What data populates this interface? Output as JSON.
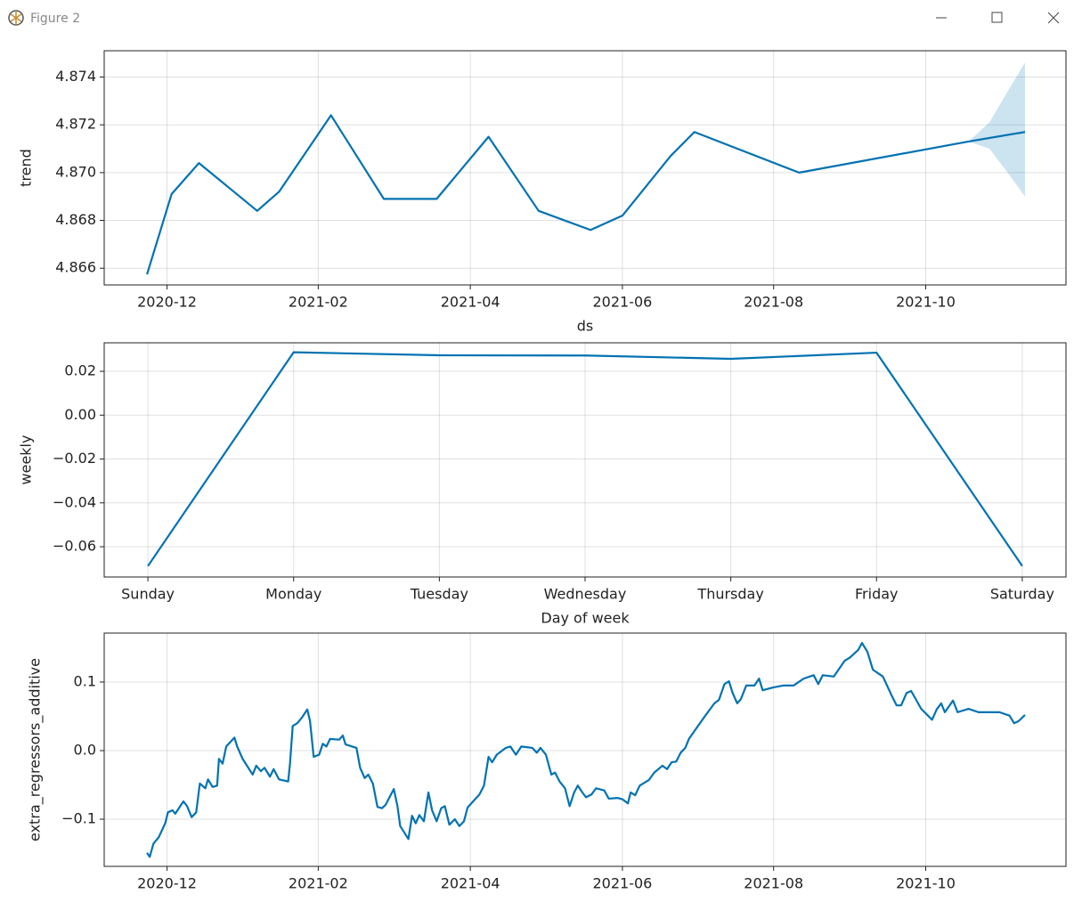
{
  "window": {
    "title": "Figure 2"
  },
  "chart_data": [
    {
      "type": "line",
      "ylabel": "trend",
      "xlabel": "ds",
      "color": "#0072B2",
      "grid": true,
      "xlim": [
        2020.848,
        2021.904
      ],
      "ylim": [
        4.8653,
        4.8751
      ],
      "xticks": [
        {
          "value": 2020.917,
          "label": "2020-12"
        },
        {
          "value": 2021.083,
          "label": "2021-02"
        },
        {
          "value": 2021.25,
          "label": "2021-04"
        },
        {
          "value": 2021.417,
          "label": "2021-06"
        },
        {
          "value": 2021.583,
          "label": "2021-08"
        },
        {
          "value": 2021.75,
          "label": "2021-10"
        }
      ],
      "yticks": [
        4.866,
        4.868,
        {
          "value": 4.87,
          "label": "4.870"
        },
        4.872,
        4.874
      ],
      "x": [
        2020.895,
        2020.922,
        2020.952,
        2021.016,
        2021.04,
        2021.097,
        2021.155,
        2021.213,
        2021.27,
        2021.325,
        2021.382,
        2021.417,
        2021.47,
        2021.496,
        2021.611,
        2021.797,
        2021.859
      ],
      "values": [
        4.86574,
        4.8691,
        4.8704,
        4.8684,
        4.8692,
        4.8724,
        4.8689,
        4.8689,
        4.8715,
        4.8684,
        4.8676,
        4.8682,
        4.8707,
        4.8717,
        4.87,
        4.8713,
        4.8717
      ],
      "band": {
        "x": [
          2021.797,
          2021.82,
          2021.84,
          2021.859
        ],
        "upper": [
          4.8713,
          4.8721,
          4.8734,
          4.8746
        ],
        "lower": [
          4.8713,
          4.871,
          4.87,
          4.869
        ]
      }
    },
    {
      "type": "line",
      "ylabel": "weekly",
      "xlabel": "Day of week",
      "color": "#0072B2",
      "grid": true,
      "categories": [
        "Sunday",
        "Monday",
        "Tuesday",
        "Wednesday",
        "Thursday",
        "Friday",
        "Saturday"
      ],
      "values": [
        -0.0688,
        0.0287,
        0.0273,
        0.0272,
        0.0257,
        0.0285,
        -0.0688
      ],
      "ylim": [
        -0.0738,
        0.033
      ],
      "yticks": [
        0.02,
        {
          "value": 0,
          "label": "0.00"
        },
        {
          "value": -0.02,
          "label": "−0.02"
        },
        {
          "value": -0.04,
          "label": "−0.04"
        },
        {
          "value": -0.06,
          "label": "−0.06"
        }
      ]
    },
    {
      "type": "line",
      "ylabel": "extra_regressors_additive",
      "color": "#0072B2",
      "grid": true,
      "xlim": [
        2020.848,
        2021.904
      ],
      "ylim": [
        -0.1688,
        0.1714
      ],
      "xticks": [
        {
          "value": 2020.917,
          "label": "2020-12"
        },
        {
          "value": 2021.083,
          "label": "2021-02"
        },
        {
          "value": 2021.25,
          "label": "2021-04"
        },
        {
          "value": 2021.417,
          "label": "2021-06"
        },
        {
          "value": 2021.583,
          "label": "2021-08"
        },
        {
          "value": 2021.75,
          "label": "2021-10"
        }
      ],
      "yticks": [
        0.1,
        {
          "value": 0,
          "label": "0.0"
        },
        {
          "value": -0.1,
          "label": "−0.1"
        }
      ],
      "x": [
        2020.895,
        2020.898,
        2020.902,
        2020.908,
        2020.915,
        2020.918,
        2020.923,
        2020.926,
        2020.935,
        2020.939,
        2020.944,
        2020.949,
        2020.953,
        2020.959,
        2020.962,
        2020.967,
        2020.972,
        2020.974,
        2020.978,
        2020.982,
        2020.991,
        2020.994,
        2021.0,
        2021.011,
        2021.015,
        2021.02,
        2021.024,
        2021.03,
        2021.034,
        2021.04,
        2021.05,
        2021.052,
        2021.055,
        2021.06,
        2021.065,
        2021.071,
        2021.074,
        2021.078,
        2021.084,
        2021.088,
        2021.092,
        2021.096,
        2021.106,
        2021.11,
        2021.113,
        2021.125,
        2021.129,
        2021.134,
        2021.138,
        2021.143,
        2021.148,
        2021.153,
        2021.157,
        2021.166,
        2021.17,
        2021.173,
        2021.182,
        2021.186,
        2021.19,
        2021.194,
        2021.199,
        2021.204,
        2021.208,
        2021.213,
        2021.218,
        2021.222,
        2021.227,
        2021.233,
        2021.238,
        2021.243,
        2021.247,
        2021.26,
        2021.265,
        2021.27,
        2021.274,
        2021.279,
        2021.289,
        2021.294,
        2021.3,
        2021.306,
        2021.318,
        2021.323,
        2021.327,
        2021.333,
        2021.339,
        2021.343,
        2021.348,
        2021.354,
        2021.359,
        2021.364,
        2021.368,
        2021.373,
        2021.377,
        2021.383,
        2021.388,
        2021.397,
        2021.402,
        2021.412,
        2021.417,
        2021.423,
        2021.426,
        2021.431,
        2021.436,
        2021.446,
        2021.452,
        2021.461,
        2021.466,
        2021.471,
        2021.476,
        2021.481,
        2021.486,
        2021.49,
        2021.5,
        2021.508,
        2021.518,
        2021.523,
        2021.529,
        2021.534,
        2021.538,
        2021.543,
        2021.547,
        2021.553,
        2021.562,
        2021.567,
        2021.571,
        2021.582,
        2021.594,
        2021.605,
        2021.616,
        2021.627,
        2021.632,
        2021.637,
        2021.649,
        2021.661,
        2021.667,
        2021.676,
        2021.68,
        2021.686,
        2021.692,
        2021.703,
        2021.712,
        2021.718,
        2021.723,
        2021.729,
        2021.734,
        2021.745,
        2021.757,
        2021.762,
        2021.767,
        2021.771,
        2021.78,
        2021.785,
        2021.797,
        2021.808,
        2021.82,
        2021.831,
        2021.842,
        2021.847,
        2021.852,
        2021.859
      ],
      "values": [
        -0.149,
        -0.155,
        -0.136,
        -0.126,
        -0.106,
        -0.09,
        -0.087,
        -0.092,
        -0.074,
        -0.081,
        -0.097,
        -0.09,
        -0.048,
        -0.055,
        -0.042,
        -0.053,
        -0.051,
        -0.012,
        -0.019,
        0.006,
        0.019,
        0.006,
        -0.012,
        -0.035,
        -0.022,
        -0.03,
        -0.025,
        -0.038,
        -0.027,
        -0.042,
        -0.045,
        -0.019,
        0.036,
        0.04,
        0.048,
        0.06,
        0.043,
        -0.009,
        -0.006,
        0.01,
        0.006,
        0.017,
        0.016,
        0.022,
        0.009,
        0.004,
        -0.025,
        -0.04,
        -0.035,
        -0.048,
        -0.082,
        -0.084,
        -0.079,
        -0.056,
        -0.081,
        -0.11,
        -0.129,
        -0.095,
        -0.106,
        -0.094,
        -0.103,
        -0.061,
        -0.087,
        -0.103,
        -0.084,
        -0.081,
        -0.108,
        -0.1,
        -0.11,
        -0.103,
        -0.083,
        -0.064,
        -0.051,
        -0.009,
        -0.017,
        -0.006,
        0.004,
        0.006,
        -0.006,
        0.006,
        0.004,
        -0.003,
        0.004,
        -0.006,
        -0.035,
        -0.032,
        -0.045,
        -0.055,
        -0.081,
        -0.061,
        -0.051,
        -0.061,
        -0.068,
        -0.064,
        -0.055,
        -0.058,
        -0.07,
        -0.069,
        -0.071,
        -0.077,
        -0.061,
        -0.065,
        -0.051,
        -0.043,
        -0.032,
        -0.022,
        -0.027,
        -0.017,
        -0.016,
        -0.003,
        0.004,
        0.017,
        0.036,
        0.051,
        0.069,
        0.074,
        0.097,
        0.101,
        0.084,
        0.069,
        0.075,
        0.095,
        0.095,
        0.105,
        0.088,
        0.092,
        0.095,
        0.095,
        0.105,
        0.11,
        0.097,
        0.11,
        0.108,
        0.131,
        0.136,
        0.147,
        0.157,
        0.144,
        0.118,
        0.108,
        0.082,
        0.066,
        0.066,
        0.084,
        0.087,
        0.061,
        0.045,
        0.06,
        0.069,
        0.056,
        0.073,
        0.056,
        0.061,
        0.056,
        0.056,
        0.056,
        0.051,
        0.04,
        0.043,
        0.052
      ]
    }
  ]
}
